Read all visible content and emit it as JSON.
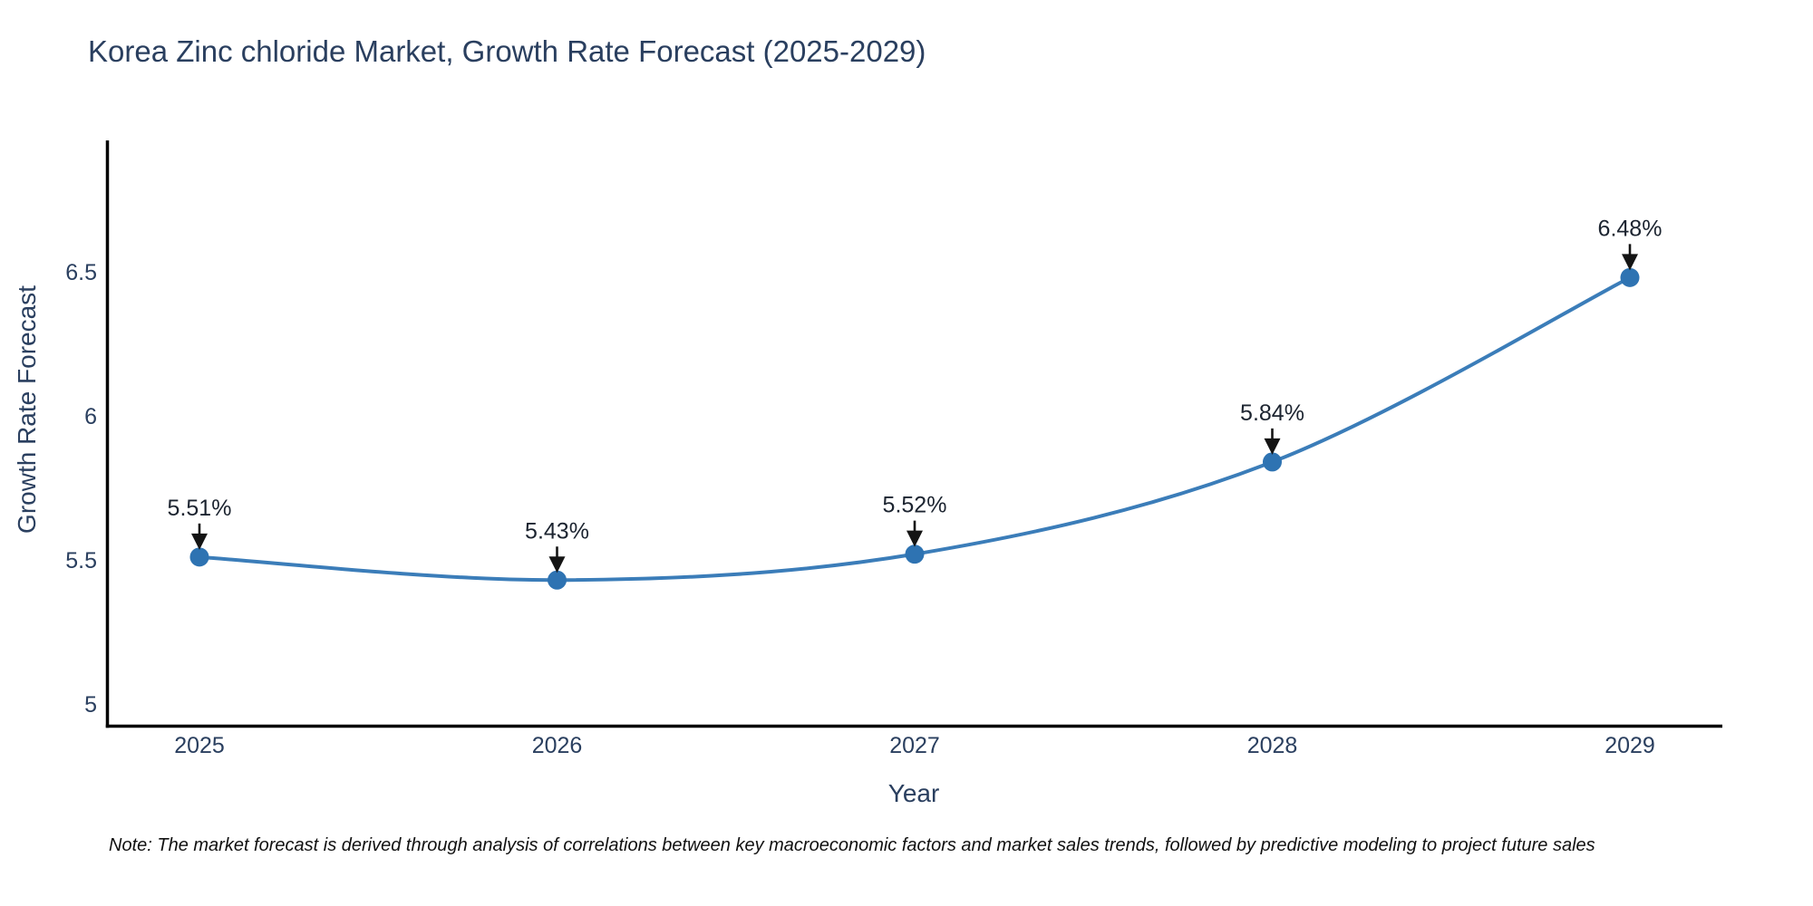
{
  "title": "Korea Zinc chloride Market, Growth Rate Forecast (2025-2029)",
  "footnote": "Note: The market forecast is derived through analysis of correlations between key macroeconomic factors and market sales trends, followed by predictive modeling to project future sales",
  "chart_data": {
    "type": "line",
    "title": "Korea Zinc chloride Market, Growth Rate Forecast (2025-2029)",
    "xlabel": "Year",
    "ylabel": "Growth Rate Forecast",
    "x": [
      2025,
      2026,
      2027,
      2028,
      2029
    ],
    "series": [
      {
        "name": "Growth Rate Forecast",
        "values": [
          5.51,
          5.43,
          5.52,
          5.84,
          6.48
        ]
      }
    ],
    "point_labels": [
      "5.51%",
      "5.43%",
      "5.52%",
      "5.84%",
      "6.48%"
    ],
    "yticks": [
      5,
      5.5,
      6,
      6.5
    ],
    "ytick_labels": [
      "5",
      "5.5",
      "6",
      "6.5"
    ],
    "ylim": [
      4.92,
      6.97
    ],
    "grid": false,
    "legend": "none",
    "line_shape": "spline",
    "line_color": "#3b7db9",
    "marker_color": "#2e73b2",
    "arrow_color": "#141414",
    "axis_color": "#000000",
    "text_color": "#2a3f5f"
  }
}
